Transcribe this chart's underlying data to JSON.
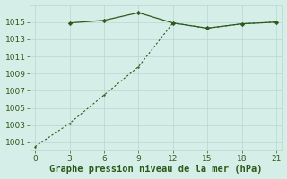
{
  "x": [
    0,
    3,
    6,
    9,
    12,
    15,
    18,
    21
  ],
  "series1": [
    null,
    1014.9,
    1015.2,
    1016.1,
    1014.9,
    1014.3,
    1014.8,
    1015.0
  ],
  "series2": [
    1000.5,
    1003.2,
    1006.5,
    1009.8,
    1014.9,
    1014.3,
    1014.8,
    1015.0
  ],
  "line_color": "#2d5a1b",
  "bg_color": "#d5eee8",
  "grid_color": "#b8d8d0",
  "xlabel": "Graphe pression niveau de la mer (hPa)",
  "ylim": [
    1000.0,
    1017.0
  ],
  "xlim": [
    -0.5,
    21.5
  ],
  "yticks": [
    1001,
    1003,
    1005,
    1007,
    1009,
    1011,
    1013,
    1015
  ],
  "xticks": [
    0,
    3,
    6,
    9,
    12,
    15,
    18,
    21
  ],
  "tick_color": "#2d5a1b",
  "xlabel_fontsize": 7.5,
  "tick_fontsize": 6.5
}
